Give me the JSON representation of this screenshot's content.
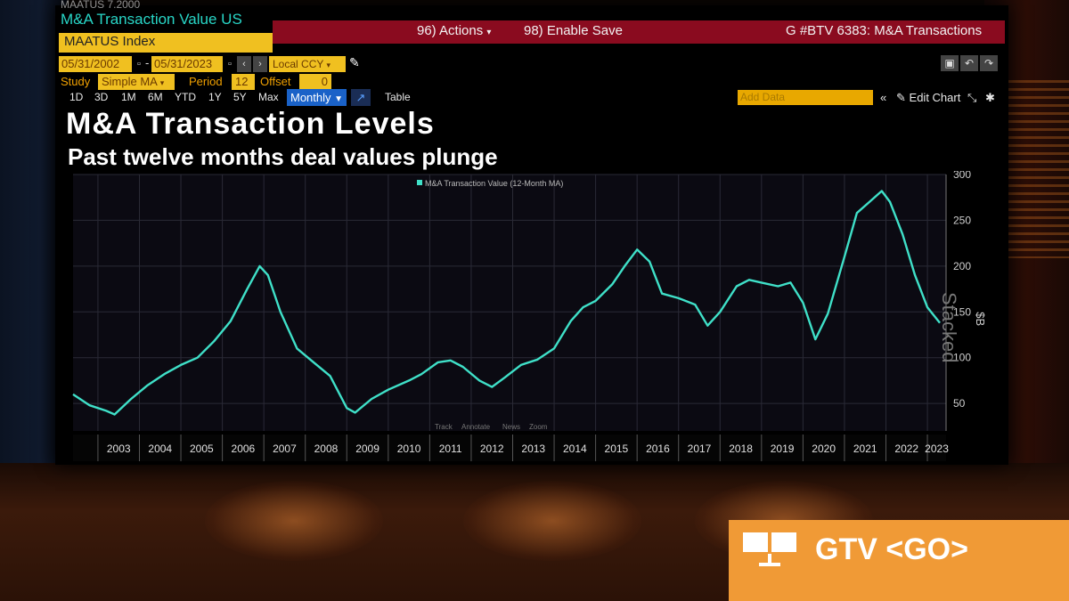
{
  "header": {
    "ticker_top": "MAATUS    7.2000",
    "security_name": "M&A Transaction Value US",
    "index_name": "MAATUS Index",
    "actions_label": "96) Actions",
    "enable_save_label": "98) Enable Save",
    "function_label": "G #BTV 6383: M&A Transactions"
  },
  "controls": {
    "start_date": "05/31/2002",
    "end_date": "05/31/2023",
    "date_separator": "-",
    "currency": "Local CCY",
    "study_label": "Study",
    "study_value": "Simple MA",
    "period_label": "Period",
    "period_value": "12",
    "offset_label": "Offset",
    "offset_value": "0",
    "ranges": [
      "1D",
      "3D",
      "1M",
      "6M",
      "YTD",
      "1Y",
      "5Y",
      "Max"
    ],
    "frequency": "Monthly",
    "table_label": "Table",
    "add_data_placeholder": "Add Data",
    "edit_chart_label": "Edit Chart"
  },
  "chart_data": {
    "type": "line",
    "title": "M&A Transaction Levels",
    "subtitle": "Past twelve months deal values plunge",
    "ylabel": "$B",
    "side_label": "Stacked",
    "legend": "top-center",
    "grid": true,
    "ylim": [
      20,
      300
    ],
    "yticks": [
      50,
      100,
      150,
      200,
      250,
      300
    ],
    "xlim": [
      2002.4,
      2023.45
    ],
    "xticks": [
      "2003",
      "2004",
      "2005",
      "2006",
      "2007",
      "2008",
      "2009",
      "2010",
      "2011",
      "2012",
      "2013",
      "2014",
      "2015",
      "2016",
      "2017",
      "2018",
      "2019",
      "2020",
      "2021",
      "2022",
      "2023"
    ],
    "footer_tools": [
      "Track",
      "Annotate",
      "News",
      "Zoom"
    ],
    "series": [
      {
        "name": "M&A Transaction Value (12-Month MA)",
        "color": "#3fe0c8",
        "x": [
          2002.4,
          2002.8,
          2003.2,
          2003.4,
          2003.8,
          2004.2,
          2004.6,
          2005.0,
          2005.4,
          2005.8,
          2006.2,
          2006.6,
          2006.9,
          2007.1,
          2007.4,
          2007.8,
          2008.2,
          2008.6,
          2009.0,
          2009.2,
          2009.6,
          2010.0,
          2010.5,
          2010.8,
          2011.2,
          2011.5,
          2011.8,
          2012.2,
          2012.5,
          2012.8,
          2013.2,
          2013.6,
          2014.0,
          2014.4,
          2014.7,
          2015.0,
          2015.4,
          2015.7,
          2016.0,
          2016.3,
          2016.6,
          2017.0,
          2017.4,
          2017.7,
          2018.0,
          2018.4,
          2018.7,
          2019.0,
          2019.4,
          2019.7,
          2020.0,
          2020.3,
          2020.6,
          2021.0,
          2021.3,
          2021.6,
          2021.9,
          2022.1,
          2022.4,
          2022.7,
          2023.0,
          2023.3
        ],
        "values": [
          60,
          48,
          42,
          38,
          55,
          70,
          82,
          92,
          100,
          118,
          140,
          175,
          200,
          190,
          150,
          110,
          95,
          80,
          45,
          40,
          55,
          65,
          75,
          82,
          95,
          97,
          90,
          75,
          68,
          78,
          92,
          98,
          110,
          140,
          155,
          162,
          180,
          200,
          218,
          205,
          170,
          165,
          158,
          135,
          150,
          178,
          185,
          182,
          178,
          182,
          160,
          120,
          148,
          210,
          258,
          270,
          282,
          270,
          235,
          190,
          155,
          138
        ]
      }
    ]
  },
  "branding": {
    "gtv_label": "GTV <GO>"
  }
}
